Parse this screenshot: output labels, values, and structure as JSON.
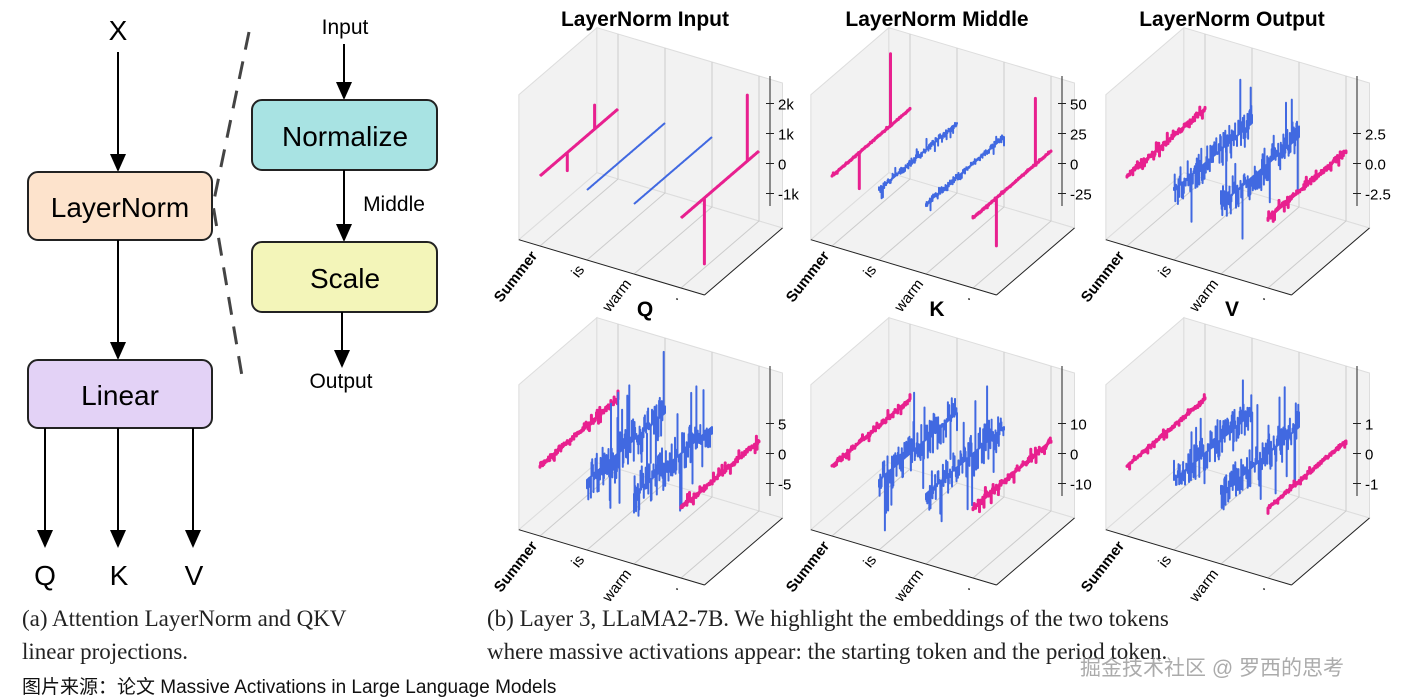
{
  "diagram": {
    "input_x": "X",
    "layernorm": "LayerNorm",
    "linear": "Linear",
    "outputs": [
      "Q",
      "K",
      "V"
    ],
    "detail": {
      "input": "Input",
      "normalize": "Normalize",
      "middle": "Middle",
      "scale": "Scale",
      "output": "Output"
    },
    "colors": {
      "layernorm": "#fde3cc",
      "linear": "#e3d2f6",
      "normalize": "#a8e3e3",
      "scale": "#f3f5b9"
    }
  },
  "chart_data": [
    {
      "type": "line3d",
      "title": "LayerNorm Input",
      "tokens": [
        "Summer",
        "is",
        "warm",
        "."
      ],
      "zticks": [
        "-1k",
        "0",
        "1k",
        "2k"
      ],
      "ztick_values": [
        -1000,
        0,
        1000,
        2000
      ],
      "noise": [
        0,
        0,
        0,
        0
      ],
      "spikes": [
        [
          [
            0.35,
            -600
          ],
          [
            0.7,
            800
          ]
        ],
        [],
        [],
        [
          [
            0.3,
            -2200
          ],
          [
            0.85,
            2200
          ]
        ]
      ]
    },
    {
      "type": "line3d",
      "title": "LayerNorm Middle",
      "tokens": [
        "Summer",
        "is",
        "warm",
        "."
      ],
      "zticks": [
        "-25",
        "0",
        "25",
        "50"
      ],
      "ztick_values": [
        -25,
        0,
        25,
        50
      ],
      "noise": [
        1,
        5,
        5,
        1
      ],
      "spikes": [
        [
          [
            0.35,
            -30
          ],
          [
            0.75,
            60
          ]
        ],
        [],
        [],
        [
          [
            0.3,
            -40
          ],
          [
            0.8,
            55
          ]
        ]
      ]
    },
    {
      "type": "line3d",
      "title": "LayerNorm Output",
      "tokens": [
        "Summer",
        "is",
        "warm",
        "."
      ],
      "zticks": [
        "-2.5",
        "0.0",
        "2.5"
      ],
      "ztick_values": [
        -2.5,
        0,
        2.5
      ],
      "noise": [
        0.4,
        2.5,
        2.5,
        0.4
      ],
      "spikes": [
        [],
        [],
        [],
        []
      ]
    },
    {
      "type": "line3d",
      "title": "Q",
      "tokens": [
        "Summer",
        "is",
        "warm",
        "."
      ],
      "zticks": [
        "-5",
        "0",
        "5"
      ],
      "ztick_values": [
        -5,
        0,
        5
      ],
      "noise": [
        0.8,
        6,
        6,
        0.8
      ],
      "spikes": [
        [],
        [],
        [],
        []
      ]
    },
    {
      "type": "line3d",
      "title": "K",
      "tokens": [
        "Summer",
        "is",
        "warm",
        "."
      ],
      "zticks": [
        "-10",
        "0",
        "10"
      ],
      "ztick_values": [
        -10,
        0,
        10
      ],
      "noise": [
        1.5,
        11,
        11,
        2
      ],
      "spikes": [
        [],
        [],
        [],
        []
      ]
    },
    {
      "type": "line3d",
      "title": "V",
      "tokens": [
        "Summer",
        "is",
        "warm",
        "."
      ],
      "zticks": [
        "-1",
        "0",
        "1"
      ],
      "ztick_values": [
        -1,
        0,
        1
      ],
      "noise": [
        0.1,
        1.1,
        1.1,
        0.1
      ],
      "spikes": [
        [],
        [],
        [],
        []
      ]
    }
  ],
  "series_colors": {
    "highlighted": "#e8208f",
    "other": "#4169e1"
  },
  "captions": {
    "a": "(a) Attention LayerNorm and QKV linear projections.",
    "a_line1": "(a) Attention LayerNorm and QKV",
    "a_line2": "linear projections.",
    "b_line1": "(b) Layer 3, LLaMA2-7B. We highlight the embeddings of the two tokens",
    "b_line2": "where massive activations appear: the starting token and the period token."
  },
  "source": "图片来源：论文 Massive Activations in Large Language Models",
  "watermark": "掘金技术社区 @ 罗西的思考"
}
